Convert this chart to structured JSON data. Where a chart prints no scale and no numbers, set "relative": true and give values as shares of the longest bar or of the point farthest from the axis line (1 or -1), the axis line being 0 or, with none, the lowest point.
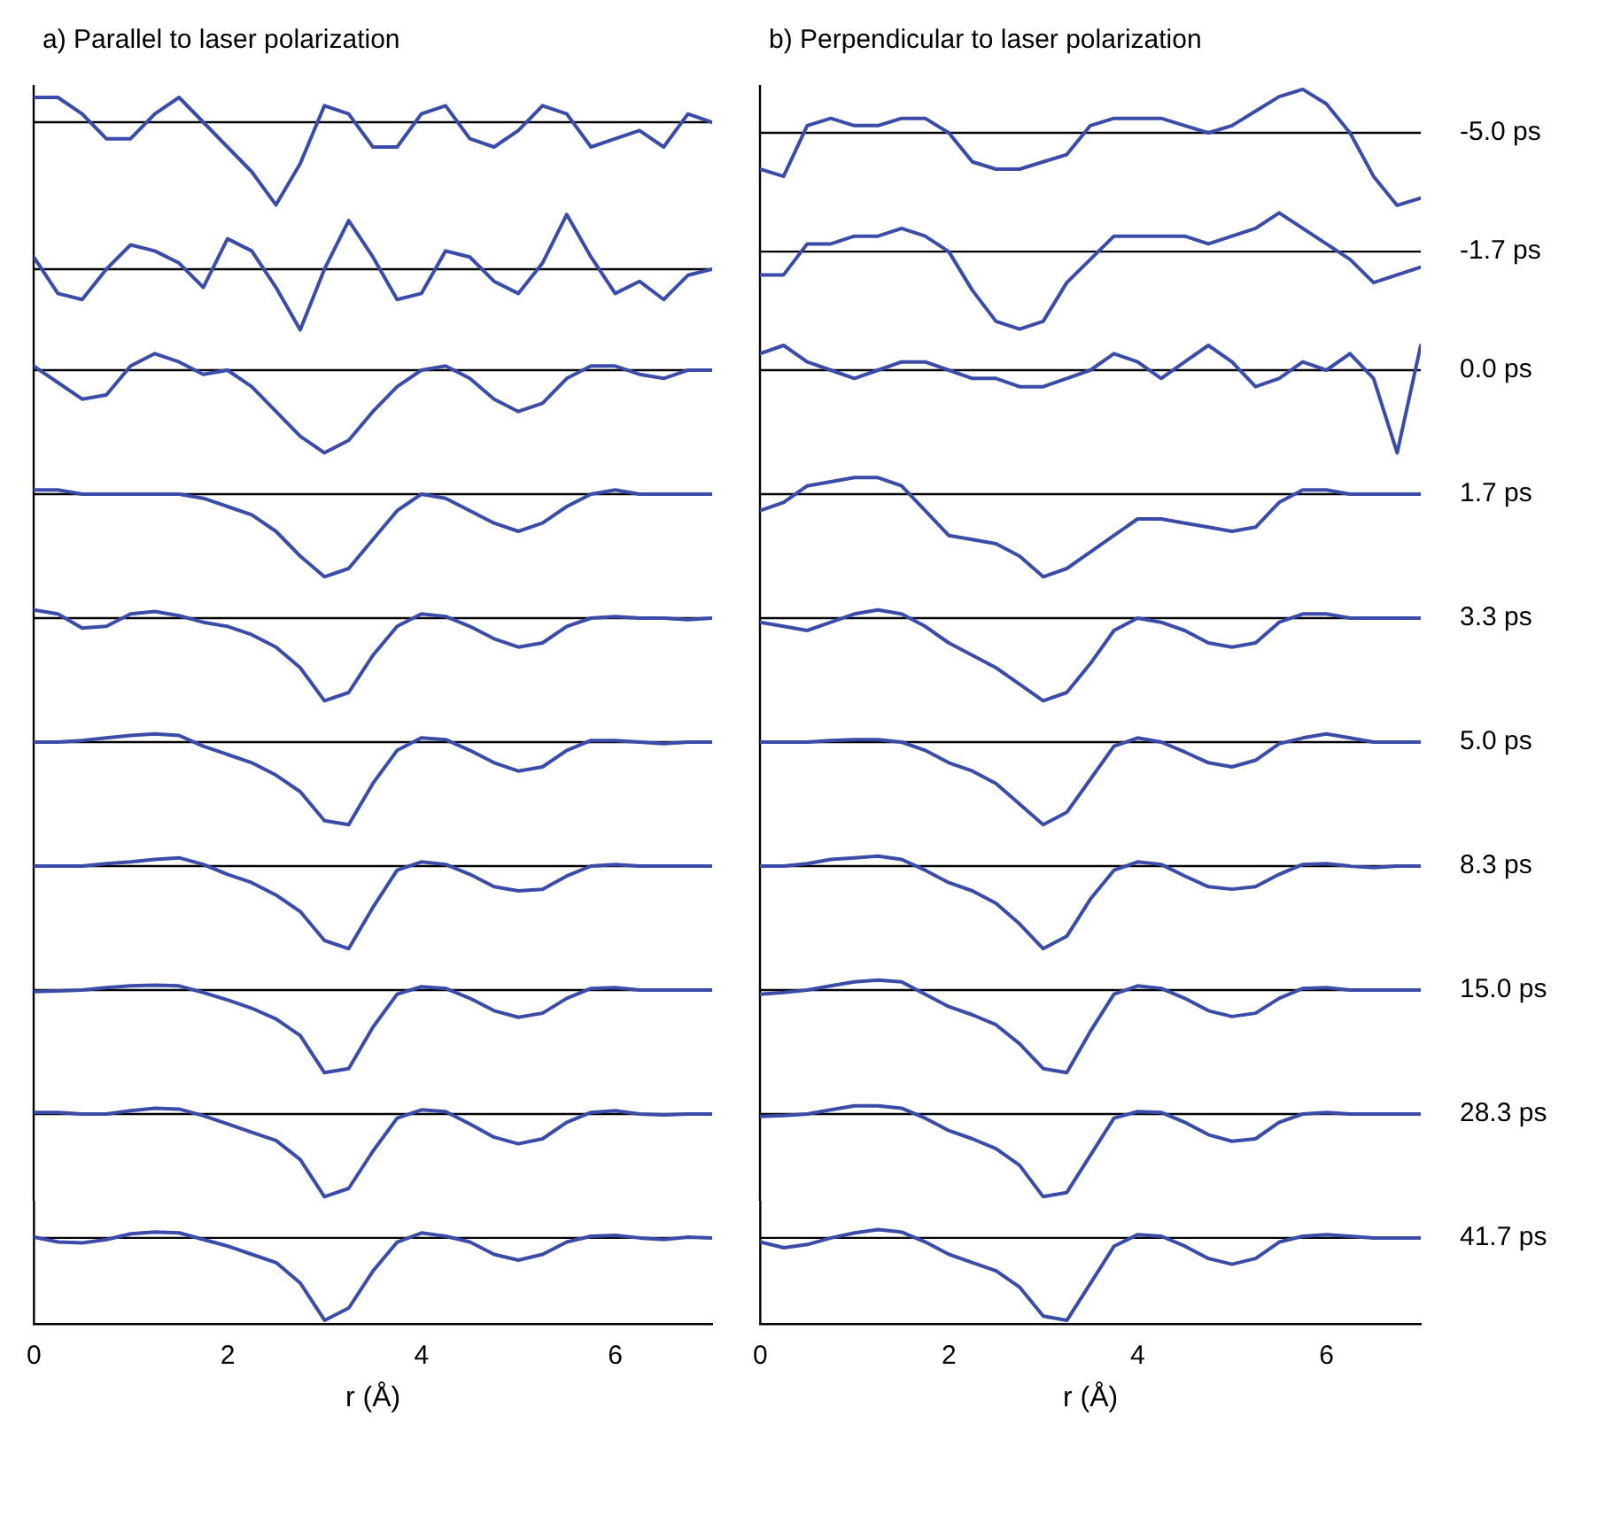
{
  "chart_data": [
    {
      "type": "line",
      "title": "a)  Parallel to laser polarization",
      "relative": true,
      "tick_labels": false,
      "categories": [
        null,
        null,
        null,
        null,
        null,
        null,
        null,
        null,
        null,
        null,
        null,
        null,
        null,
        null,
        null,
        null,
        null,
        null,
        null,
        null,
        null,
        null,
        null,
        null,
        null,
        null,
        null,
        null,
        null
      ],
      "series": [
        {
          "color": "#3a4ca8",
          "values": [
            0.3,
            0.3,
            0.1,
            -0.2,
            -0.2,
            0.1,
            0.3,
            0,
            -0.3,
            -0.6,
            -1,
            -0.5,
            0.2,
            0.1,
            -0.3,
            -0.3,
            0.1,
            0.2,
            -0.2,
            -0.3,
            -0.1,
            0.2,
            0.1,
            -0.3,
            -0.2,
            -0.1,
            -0.3,
            0.1,
            0
          ]
        }
      ]
    },
    {
      "type": "line",
      "relative": true,
      "tick_labels": false,
      "categories": [
        null,
        null,
        null,
        null,
        null,
        null,
        null,
        null,
        null,
        null,
        null,
        null,
        null,
        null,
        null,
        null,
        null,
        null,
        null,
        null,
        null,
        null,
        null,
        null,
        null,
        null,
        null,
        null,
        null
      ],
      "series": [
        {
          "color": "#3a4ca8",
          "values": [
            0.2,
            -0.4,
            -0.5,
            0,
            0.4,
            0.3,
            0.1,
            -0.3,
            0.5,
            0.3,
            -0.3,
            -1,
            0,
            0.8,
            0.2,
            -0.5,
            -0.4,
            0.3,
            0.2,
            -0.2,
            -0.4,
            0.1,
            0.9,
            0.2,
            -0.4,
            -0.2,
            -0.5,
            -0.1,
            0
          ]
        }
      ]
    },
    {
      "type": "line",
      "relative": true,
      "tick_labels": false,
      "categories": [
        null,
        null,
        null,
        null,
        null,
        null,
        null,
        null,
        null,
        null,
        null,
        null,
        null,
        null,
        null,
        null,
        null,
        null,
        null,
        null,
        null,
        null,
        null,
        null,
        null,
        null,
        null,
        null,
        null
      ],
      "series": [
        {
          "color": "#3a4ca8",
          "values": [
            0.05,
            -0.15,
            -0.35,
            -0.3,
            0.05,
            0.2,
            0.1,
            -0.05,
            0,
            -0.2,
            -0.5,
            -0.8,
            -1,
            -0.85,
            -0.5,
            -0.2,
            0,
            0.05,
            -0.1,
            -0.35,
            -0.5,
            -0.4,
            -0.1,
            0.05,
            0.05,
            -0.05,
            -0.1,
            0,
            0
          ]
        }
      ]
    },
    {
      "type": "line",
      "relative": true,
      "tick_labels": false,
      "categories": [
        null,
        null,
        null,
        null,
        null,
        null,
        null,
        null,
        null,
        null,
        null,
        null,
        null,
        null,
        null,
        null,
        null,
        null,
        null,
        null,
        null,
        null,
        null,
        null,
        null,
        null,
        null,
        null,
        null
      ],
      "series": [
        {
          "color": "#3a4ca8",
          "values": [
            0.05,
            0.05,
            0,
            0,
            0,
            0,
            0,
            -0.05,
            -0.15,
            -0.25,
            -0.45,
            -0.75,
            -1,
            -0.9,
            -0.55,
            -0.2,
            0,
            -0.05,
            -0.2,
            -0.35,
            -0.45,
            -0.35,
            -0.15,
            0,
            0.05,
            0,
            0,
            0,
            0
          ]
        }
      ]
    },
    {
      "type": "line",
      "relative": true,
      "tick_labels": false,
      "categories": [
        null,
        null,
        null,
        null,
        null,
        null,
        null,
        null,
        null,
        null,
        null,
        null,
        null,
        null,
        null,
        null,
        null,
        null,
        null,
        null,
        null,
        null,
        null,
        null,
        null,
        null,
        null,
        null,
        null
      ],
      "series": [
        {
          "color": "#3a4ca8",
          "values": [
            0.1,
            0.05,
            -0.12,
            -0.1,
            0.05,
            0.08,
            0.03,
            -0.05,
            -0.1,
            -0.2,
            -0.35,
            -0.6,
            -1,
            -0.9,
            -0.45,
            -0.1,
            0.05,
            0.02,
            -0.1,
            -0.25,
            -0.35,
            -0.3,
            -0.1,
            0,
            0.02,
            0,
            0,
            -0.02,
            0
          ]
        }
      ]
    },
    {
      "type": "line",
      "relative": true,
      "tick_labels": false,
      "categories": [
        null,
        null,
        null,
        null,
        null,
        null,
        null,
        null,
        null,
        null,
        null,
        null,
        null,
        null,
        null,
        null,
        null,
        null,
        null,
        null,
        null,
        null,
        null,
        null,
        null,
        null,
        null,
        null,
        null
      ],
      "series": [
        {
          "color": "#3a4ca8",
          "values": [
            0,
            0,
            0.02,
            0.05,
            0.08,
            0.1,
            0.08,
            -0.05,
            -0.15,
            -0.25,
            -0.4,
            -0.6,
            -0.95,
            -1,
            -0.5,
            -0.1,
            0.05,
            0.03,
            -0.1,
            -0.25,
            -0.35,
            -0.3,
            -0.1,
            0.02,
            0.02,
            0,
            -0.02,
            0,
            0
          ]
        }
      ]
    },
    {
      "type": "line",
      "relative": true,
      "tick_labels": false,
      "categories": [
        null,
        null,
        null,
        null,
        null,
        null,
        null,
        null,
        null,
        null,
        null,
        null,
        null,
        null,
        null,
        null,
        null,
        null,
        null,
        null,
        null,
        null,
        null,
        null,
        null,
        null,
        null,
        null,
        null
      ],
      "series": [
        {
          "color": "#3a4ca8",
          "values": [
            0,
            0,
            0,
            0.03,
            0.05,
            0.08,
            0.1,
            0.02,
            -0.1,
            -0.2,
            -0.35,
            -0.55,
            -0.9,
            -1,
            -0.5,
            -0.05,
            0.05,
            0.02,
            -0.1,
            -0.25,
            -0.3,
            -0.28,
            -0.12,
            0,
            0.02,
            0,
            0,
            0,
            0
          ]
        }
      ]
    },
    {
      "type": "line",
      "relative": true,
      "tick_labels": false,
      "categories": [
        null,
        null,
        null,
        null,
        null,
        null,
        null,
        null,
        null,
        null,
        null,
        null,
        null,
        null,
        null,
        null,
        null,
        null,
        null,
        null,
        null,
        null,
        null,
        null,
        null,
        null,
        null,
        null,
        null
      ],
      "series": [
        {
          "color": "#3a4ca8",
          "values": [
            -0.02,
            -0.01,
            0,
            0.03,
            0.05,
            0.06,
            0.05,
            -0.03,
            -0.12,
            -0.22,
            -0.35,
            -0.55,
            -1,
            -0.95,
            -0.45,
            -0.05,
            0.04,
            0.02,
            -0.1,
            -0.25,
            -0.33,
            -0.28,
            -0.1,
            0.02,
            0.03,
            0,
            0,
            0,
            0
          ]
        }
      ]
    },
    {
      "type": "line",
      "relative": true,
      "tick_labels": false,
      "categories": [
        null,
        null,
        null,
        null,
        null,
        null,
        null,
        null,
        null,
        null,
        null,
        null,
        null,
        null,
        null,
        null,
        null,
        null,
        null,
        null,
        null,
        null,
        null,
        null,
        null,
        null,
        null,
        null,
        null
      ],
      "series": [
        {
          "color": "#3a4ca8",
          "values": [
            0.02,
            0.02,
            0,
            0,
            0.04,
            0.07,
            0.06,
            -0.02,
            -0.12,
            -0.22,
            -0.32,
            -0.55,
            -1,
            -0.9,
            -0.45,
            -0.05,
            0.05,
            0.03,
            -0.12,
            -0.28,
            -0.36,
            -0.3,
            -0.1,
            0.02,
            0.04,
            0,
            -0.01,
            0,
            0
          ]
        }
      ]
    },
    {
      "type": "line",
      "relative": true,
      "tick_labels": "x",
      "xlabel": "r (Å)",
      "xlim": [
        0,
        7
      ],
      "xticks": [
        0,
        2,
        4,
        6
      ],
      "x": [
        0,
        0.25,
        0.5,
        0.75,
        1,
        1.25,
        1.5,
        1.75,
        2,
        2.25,
        2.5,
        2.75,
        3,
        3.25,
        3.5,
        3.75,
        4,
        4.25,
        4.5,
        4.75,
        5,
        5.25,
        5.5,
        5.75,
        6,
        6.25,
        6.5,
        6.75,
        7
      ],
      "series": [
        {
          "color": "#3a4ca8",
          "values": [
            0.01,
            -0.05,
            -0.06,
            -0.02,
            0.05,
            0.07,
            0.06,
            -0.02,
            -0.1,
            -0.2,
            -0.3,
            -0.55,
            -1,
            -0.85,
            -0.4,
            -0.05,
            0.06,
            0.02,
            -0.05,
            -0.2,
            -0.27,
            -0.2,
            -0.05,
            0.02,
            0.03,
            0,
            -0.02,
            0.01,
            0
          ]
        }
      ]
    },
    {
      "type": "line",
      "title": "b)  Perpendicular to laser polarization",
      "annotations": [
        "-5.0 ps"
      ],
      "relative": true,
      "tick_labels": false,
      "categories": [
        null,
        null,
        null,
        null,
        null,
        null,
        null,
        null,
        null,
        null,
        null,
        null,
        null,
        null,
        null,
        null,
        null,
        null,
        null,
        null,
        null,
        null,
        null,
        null,
        null,
        null,
        null,
        null,
        null
      ],
      "series": [
        {
          "color": "#3a4ca8",
          "values": [
            -0.5,
            -0.6,
            0.1,
            0.2,
            0.1,
            0.1,
            0.2,
            0.2,
            0,
            -0.4,
            -0.5,
            -0.5,
            -0.4,
            -0.3,
            0.1,
            0.2,
            0.2,
            0.2,
            0.1,
            0,
            0.1,
            0.3,
            0.5,
            0.6,
            0.4,
            0,
            -0.6,
            -1,
            -0.9
          ]
        }
      ]
    },
    {
      "type": "line",
      "annotations": [
        "-1.7 ps"
      ],
      "relative": true,
      "tick_labels": false,
      "categories": [
        null,
        null,
        null,
        null,
        null,
        null,
        null,
        null,
        null,
        null,
        null,
        null,
        null,
        null,
        null,
        null,
        null,
        null,
        null,
        null,
        null,
        null,
        null,
        null,
        null,
        null,
        null,
        null,
        null
      ],
      "series": [
        {
          "color": "#3a4ca8",
          "values": [
            -0.3,
            -0.3,
            0.1,
            0.1,
            0.2,
            0.2,
            0.3,
            0.2,
            0,
            -0.5,
            -0.9,
            -1,
            -0.9,
            -0.4,
            -0.1,
            0.2,
            0.2,
            0.2,
            0.2,
            0.1,
            0.2,
            0.3,
            0.5,
            0.3,
            0.1,
            -0.1,
            -0.4,
            -0.3,
            -0.2
          ]
        }
      ]
    },
    {
      "type": "line",
      "annotations": [
        "0.0 ps"
      ],
      "relative": true,
      "tick_labels": false,
      "categories": [
        null,
        null,
        null,
        null,
        null,
        null,
        null,
        null,
        null,
        null,
        null,
        null,
        null,
        null,
        null,
        null,
        null,
        null,
        null,
        null,
        null,
        null,
        null,
        null,
        null,
        null,
        null,
        null,
        null
      ],
      "series": [
        {
          "color": "#3a4ca8",
          "values": [
            0.2,
            0.3,
            0.1,
            0,
            -0.1,
            0,
            0.1,
            0.1,
            0,
            -0.1,
            -0.1,
            -0.2,
            -0.2,
            -0.1,
            0,
            0.2,
            0.1,
            -0.1,
            0.1,
            0.3,
            0.1,
            -0.2,
            -0.1,
            0.1,
            0,
            0.2,
            -0.1,
            -1,
            0.3
          ]
        }
      ]
    },
    {
      "type": "line",
      "annotations": [
        "1.7 ps"
      ],
      "relative": true,
      "tick_labels": false,
      "categories": [
        null,
        null,
        null,
        null,
        null,
        null,
        null,
        null,
        null,
        null,
        null,
        null,
        null,
        null,
        null,
        null,
        null,
        null,
        null,
        null,
        null,
        null,
        null,
        null,
        null,
        null,
        null,
        null,
        null
      ],
      "series": [
        {
          "color": "#3a4ca8",
          "values": [
            -0.2,
            -0.1,
            0.1,
            0.15,
            0.2,
            0.2,
            0.1,
            -0.2,
            -0.5,
            -0.55,
            -0.6,
            -0.75,
            -1,
            -0.9,
            -0.7,
            -0.5,
            -0.3,
            -0.3,
            -0.35,
            -0.4,
            -0.45,
            -0.4,
            -0.1,
            0.05,
            0.05,
            0,
            0,
            0,
            0
          ]
        }
      ]
    },
    {
      "type": "line",
      "annotations": [
        "3.3 ps"
      ],
      "relative": true,
      "tick_labels": false,
      "categories": [
        null,
        null,
        null,
        null,
        null,
        null,
        null,
        null,
        null,
        null,
        null,
        null,
        null,
        null,
        null,
        null,
        null,
        null,
        null,
        null,
        null,
        null,
        null,
        null,
        null,
        null,
        null,
        null,
        null
      ],
      "series": [
        {
          "color": "#3a4ca8",
          "values": [
            -0.05,
            -0.1,
            -0.15,
            -0.05,
            0.05,
            0.1,
            0.05,
            -0.1,
            -0.3,
            -0.45,
            -0.6,
            -0.8,
            -1,
            -0.9,
            -0.55,
            -0.15,
            0,
            -0.05,
            -0.15,
            -0.3,
            -0.35,
            -0.3,
            -0.05,
            0.05,
            0.05,
            0,
            0,
            0,
            0
          ]
        }
      ]
    },
    {
      "type": "line",
      "annotations": [
        "5.0 ps"
      ],
      "relative": true,
      "tick_labels": false,
      "categories": [
        null,
        null,
        null,
        null,
        null,
        null,
        null,
        null,
        null,
        null,
        null,
        null,
        null,
        null,
        null,
        null,
        null,
        null,
        null,
        null,
        null,
        null,
        null,
        null,
        null,
        null,
        null,
        null,
        null
      ],
      "series": [
        {
          "color": "#3a4ca8",
          "values": [
            0,
            0,
            0,
            0.02,
            0.03,
            0.03,
            0,
            -0.1,
            -0.25,
            -0.35,
            -0.5,
            -0.75,
            -1,
            -0.85,
            -0.45,
            -0.05,
            0.05,
            0,
            -0.12,
            -0.25,
            -0.3,
            -0.22,
            -0.02,
            0.05,
            0.1,
            0.05,
            0,
            0,
            0
          ]
        }
      ]
    },
    {
      "type": "line",
      "annotations": [
        "8.3 ps"
      ],
      "relative": true,
      "tick_labels": false,
      "categories": [
        null,
        null,
        null,
        null,
        null,
        null,
        null,
        null,
        null,
        null,
        null,
        null,
        null,
        null,
        null,
        null,
        null,
        null,
        null,
        null,
        null,
        null,
        null,
        null,
        null,
        null,
        null,
        null,
        null
      ],
      "series": [
        {
          "color": "#3a4ca8",
          "values": [
            0,
            0,
            0.03,
            0.08,
            0.1,
            0.12,
            0.08,
            -0.05,
            -0.2,
            -0.3,
            -0.45,
            -0.7,
            -1,
            -0.85,
            -0.4,
            -0.05,
            0.05,
            0.02,
            -0.12,
            -0.25,
            -0.28,
            -0.25,
            -0.1,
            0.02,
            0.03,
            0,
            -0.02,
            0,
            0
          ]
        }
      ]
    },
    {
      "type": "line",
      "annotations": [
        "15.0 ps"
      ],
      "relative": true,
      "tick_labels": false,
      "categories": [
        null,
        null,
        null,
        null,
        null,
        null,
        null,
        null,
        null,
        null,
        null,
        null,
        null,
        null,
        null,
        null,
        null,
        null,
        null,
        null,
        null,
        null,
        null,
        null,
        null,
        null,
        null,
        null,
        null
      ],
      "series": [
        {
          "color": "#3a4ca8",
          "values": [
            -0.05,
            -0.03,
            0,
            0.05,
            0.1,
            0.12,
            0.1,
            -0.05,
            -0.2,
            -0.3,
            -0.42,
            -0.65,
            -0.95,
            -1,
            -0.5,
            -0.05,
            0.05,
            0.02,
            -0.1,
            -0.25,
            -0.32,
            -0.28,
            -0.1,
            0.02,
            0.03,
            0,
            0,
            0,
            0
          ]
        }
      ]
    },
    {
      "type": "line",
      "annotations": [
        "28.3 ps"
      ],
      "relative": true,
      "tick_labels": false,
      "categories": [
        null,
        null,
        null,
        null,
        null,
        null,
        null,
        null,
        null,
        null,
        null,
        null,
        null,
        null,
        null,
        null,
        null,
        null,
        null,
        null,
        null,
        null,
        null,
        null,
        null,
        null,
        null,
        null,
        null
      ],
      "series": [
        {
          "color": "#3a4ca8",
          "values": [
            -0.03,
            -0.02,
            0,
            0.05,
            0.1,
            0.1,
            0.07,
            -0.05,
            -0.2,
            -0.3,
            -0.42,
            -0.62,
            -1,
            -0.95,
            -0.5,
            -0.05,
            0.03,
            0.02,
            -0.1,
            -0.25,
            -0.33,
            -0.3,
            -0.1,
            0,
            0.02,
            0,
            0,
            0,
            0
          ]
        }
      ]
    },
    {
      "type": "line",
      "annotations": [
        "41.7 ps"
      ],
      "relative": true,
      "tick_labels": "x",
      "xlabel": "r (Å)",
      "xlim": [
        0,
        7
      ],
      "xticks": [
        0,
        2,
        4,
        6
      ],
      "x": [
        0,
        0.25,
        0.5,
        0.75,
        1,
        1.25,
        1.5,
        1.75,
        2,
        2.25,
        2.5,
        2.75,
        3,
        3.25,
        3.5,
        3.75,
        4,
        4.25,
        4.5,
        4.75,
        5,
        5.25,
        5.5,
        5.75,
        6,
        6.25,
        6.5,
        6.75,
        7
      ],
      "series": [
        {
          "color": "#3a4ca8",
          "values": [
            -0.05,
            -0.12,
            -0.08,
            0,
            0.06,
            0.1,
            0.07,
            -0.05,
            -0.2,
            -0.3,
            -0.4,
            -0.6,
            -0.95,
            -1,
            -0.55,
            -0.1,
            0.04,
            0.02,
            -0.1,
            -0.25,
            -0.32,
            -0.25,
            -0.05,
            0.02,
            0.04,
            0.02,
            0,
            0,
            0
          ]
        }
      ]
    }
  ]
}
